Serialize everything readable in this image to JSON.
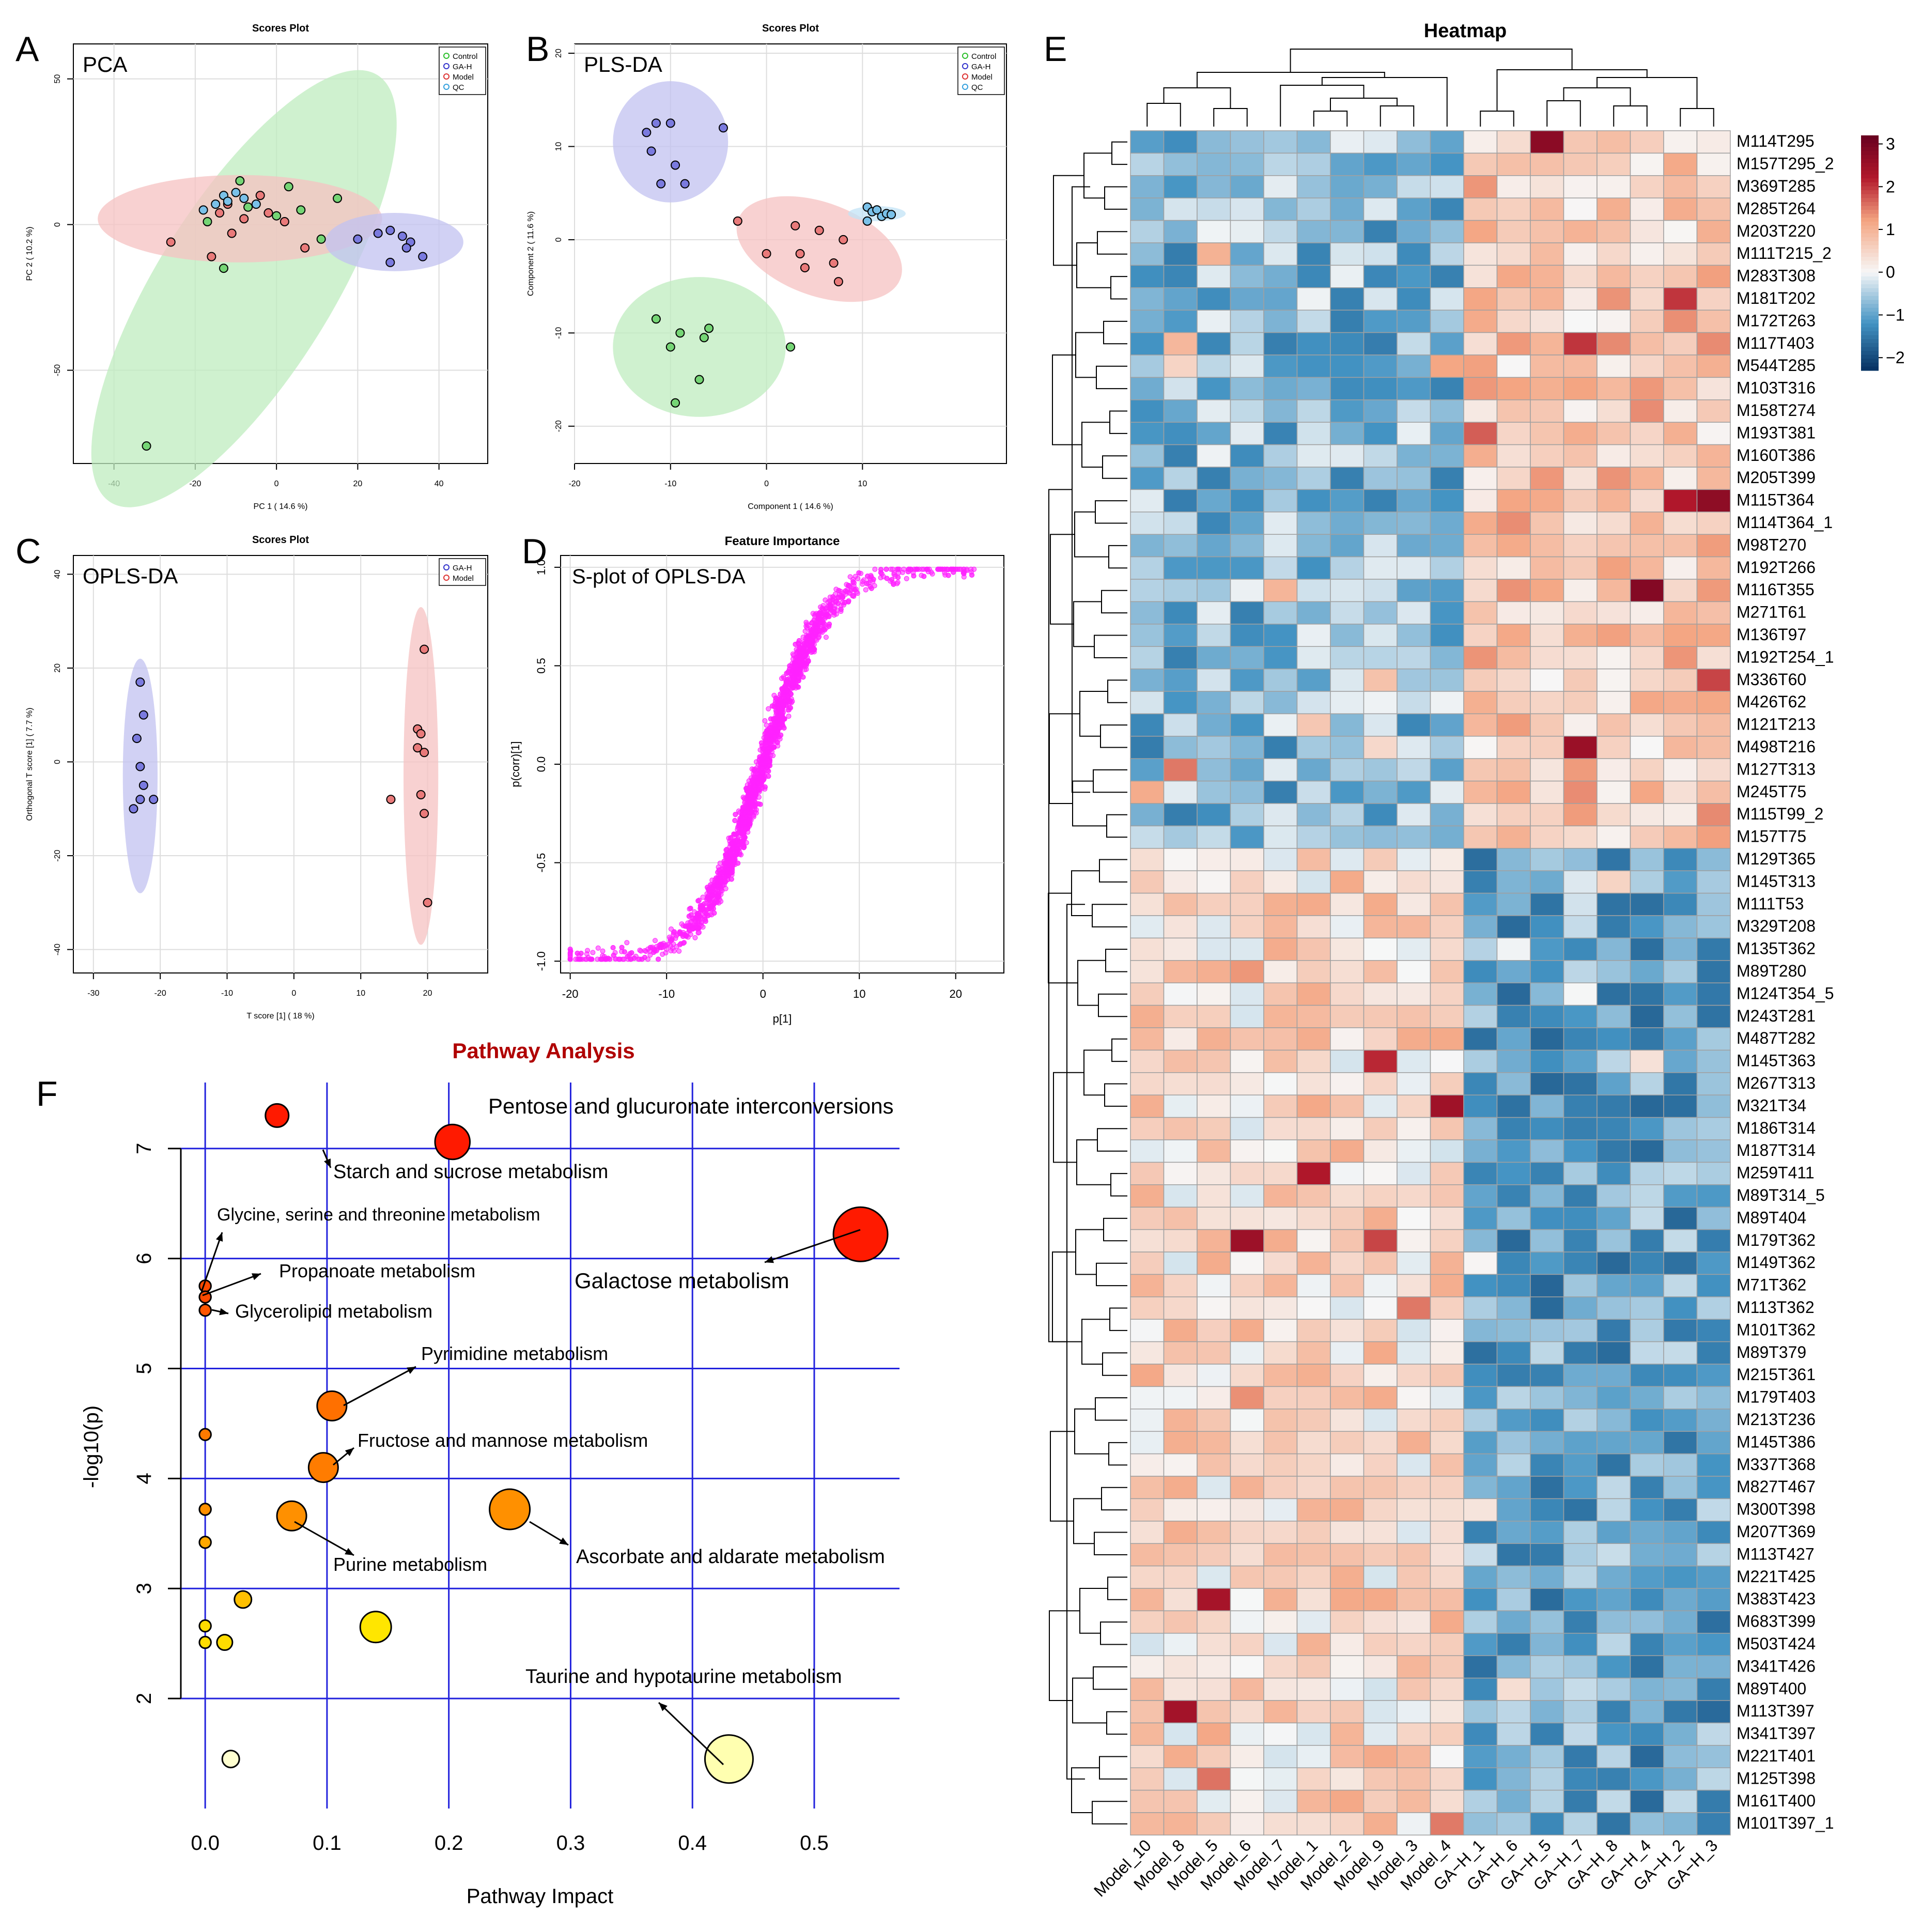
{
  "panel_letters": {
    "A": "A",
    "B": "B",
    "C": "C",
    "D": "D",
    "E": "E",
    "F": "F"
  },
  "colors": {
    "control": "#2bbf2b",
    "gah": "#3333cc",
    "model": "#dd3333",
    "qc": "#33a0dd",
    "splot": "#ff22ff",
    "path_grid": "#2222dd",
    "f_title": "#b00000",
    "hm_low": "#053061",
    "hm_mid": "#f7f7f7",
    "hm_high": "#67001f"
  },
  "chart_data": [
    {
      "id": "A",
      "type": "scatter",
      "title": "Scores Plot",
      "tag": "PCA",
      "xlabel": "PC 1 ( 14.6 %)",
      "ylabel": "PC 2 ( 10.2 %)",
      "xlim": [
        -50,
        52
      ],
      "ylim": [
        -82,
        62
      ],
      "xticks": [
        "-40",
        "-20",
        "0",
        "20",
        "40"
      ],
      "xtick_values": [
        -40,
        -20,
        0,
        20,
        40
      ],
      "yticks": [
        "-50",
        "0",
        "50"
      ],
      "ytick_values": [
        -50,
        0,
        50
      ],
      "legend": [
        "Control",
        "GA-H",
        "Model",
        "QC"
      ],
      "ellipses": [
        {
          "group": "control",
          "cx": -8,
          "cy": -22,
          "rx": 62,
          "ry": 30,
          "angle": 58
        },
        {
          "group": "model",
          "cx": -9,
          "cy": 2,
          "rx": 35,
          "ry": 15,
          "angle": 0
        },
        {
          "group": "gah",
          "cx": 29,
          "cy": -6,
          "rx": 17,
          "ry": 10,
          "angle": 0
        }
      ],
      "series": [
        {
          "name": "Control",
          "group": "control",
          "points": [
            [
              -32,
              -76
            ],
            [
              -13,
              -15
            ],
            [
              0,
              3
            ],
            [
              3,
              13
            ],
            [
              11,
              -5
            ],
            [
              15,
              9
            ],
            [
              -7,
              6
            ],
            [
              6,
              5
            ],
            [
              -9,
              15
            ],
            [
              -17,
              1
            ]
          ]
        },
        {
          "name": "GA-H",
          "group": "gah",
          "points": [
            [
              20,
              -5
            ],
            [
              25,
              -3
            ],
            [
              28,
              -2
            ],
            [
              31,
              -4
            ],
            [
              33,
              -6
            ],
            [
              36,
              -11
            ],
            [
              28,
              -13
            ],
            [
              32,
              -8
            ]
          ]
        },
        {
          "name": "Model",
          "group": "model",
          "points": [
            [
              -26,
              -6
            ],
            [
              -16,
              -11
            ],
            [
              -11,
              -3
            ],
            [
              -8,
              2
            ],
            [
              -4,
              10
            ],
            [
              -2,
              4
            ],
            [
              2,
              1
            ],
            [
              7,
              -8
            ],
            [
              -14,
              4
            ],
            [
              -12,
              7
            ]
          ]
        },
        {
          "name": "QC",
          "group": "qc",
          "points": [
            [
              -18,
              5
            ],
            [
              -15,
              7
            ],
            [
              -13,
              10
            ],
            [
              -12,
              8
            ],
            [
              -10,
              11
            ],
            [
              -8,
              9
            ],
            [
              -5,
              7
            ]
          ]
        }
      ]
    },
    {
      "id": "B",
      "type": "scatter",
      "title": "Scores Plot",
      "tag": "PLS-DA",
      "xlabel": "Component 1 ( 14.6 %)",
      "ylabel": "Component 2 ( 11.6 %)",
      "xlim": [
        -20,
        25
      ],
      "ylim": [
        -24,
        21
      ],
      "xticks": [
        "-20",
        "-10",
        "0",
        "10"
      ],
      "xtick_values": [
        -20,
        -10,
        0,
        10
      ],
      "yticks": [
        "-20",
        "-10",
        "0",
        "10",
        "20"
      ],
      "ytick_values": [
        -20,
        -10,
        0,
        10,
        20
      ],
      "legend": [
        "Control",
        "GA-H",
        "Model",
        "QC"
      ],
      "ellipses": [
        {
          "group": "gah",
          "cx": -10,
          "cy": 10.5,
          "rx": 6,
          "ry": 6.5,
          "angle": 0
        },
        {
          "group": "model",
          "cx": 5.5,
          "cy": -1,
          "rx": 9,
          "ry": 5,
          "angle": -20
        },
        {
          "group": "qc",
          "cx": 11.5,
          "cy": 2.8,
          "rx": 3,
          "ry": 0.8,
          "angle": 0
        },
        {
          "group": "control",
          "cx": -7,
          "cy": -11.5,
          "rx": 9,
          "ry": 7.5,
          "angle": 0
        }
      ],
      "series": [
        {
          "name": "Control",
          "group": "control",
          "points": [
            [
              -11.5,
              -8.5
            ],
            [
              -10,
              -11.5
            ],
            [
              -9,
              -10
            ],
            [
              -6.5,
              -10.5
            ],
            [
              -6,
              -9.5
            ],
            [
              -7,
              -15
            ],
            [
              -9.5,
              -17.5
            ],
            [
              2.5,
              -11.5
            ]
          ]
        },
        {
          "name": "GA-H",
          "group": "gah",
          "points": [
            [
              -12.5,
              11.5
            ],
            [
              -11.5,
              12.5
            ],
            [
              -10,
              12.5
            ],
            [
              -12,
              9.5
            ],
            [
              -9.5,
              8
            ],
            [
              -11,
              6
            ],
            [
              -8.5,
              6
            ],
            [
              -4.5,
              12
            ]
          ]
        },
        {
          "name": "Model",
          "group": "model",
          "points": [
            [
              -3,
              2
            ],
            [
              0,
              -1.5
            ],
            [
              3,
              1.5
            ],
            [
              3.5,
              -1.5
            ],
            [
              4,
              -3
            ],
            [
              5.5,
              1
            ],
            [
              7,
              -2.5
            ],
            [
              7.5,
              -4.5
            ],
            [
              8,
              0
            ]
          ]
        },
        {
          "name": "QC",
          "group": "qc",
          "points": [
            [
              10.5,
              3.5
            ],
            [
              11,
              3
            ],
            [
              11.5,
              3.2
            ],
            [
              10.5,
              2
            ],
            [
              12,
              2.5
            ],
            [
              12.5,
              2.8
            ],
            [
              13,
              2.7
            ]
          ]
        }
      ]
    },
    {
      "id": "C",
      "type": "scatter",
      "title": "Scores Plot",
      "tag": "OPLS-DA",
      "xlabel": "T score [1] ( 18 %)",
      "ylabel": "Orthogonal T score [1] ( 7.7 %)",
      "xlim": [
        -33,
        29
      ],
      "ylim": [
        -45,
        44
      ],
      "xticks": [
        "-30",
        "-20",
        "-10",
        "0",
        "10",
        "20"
      ],
      "xtick_values": [
        -30,
        -20,
        -10,
        0,
        10,
        20
      ],
      "yticks": [
        "-40",
        "-20",
        "0",
        "20",
        "40"
      ],
      "ytick_values": [
        -40,
        -20,
        0,
        20,
        40
      ],
      "legend": [
        "GA-H",
        "Model"
      ],
      "ellipses": [
        {
          "group": "gah",
          "cx": -23,
          "cy": -3,
          "rx": 2.6,
          "ry": 25,
          "angle": 0
        },
        {
          "group": "model",
          "cx": 19,
          "cy": -3,
          "rx": 2.6,
          "ry": 36,
          "angle": 0
        }
      ],
      "series": [
        {
          "name": "GA-H",
          "group": "gah",
          "points": [
            [
              -23,
              17
            ],
            [
              -22.5,
              10
            ],
            [
              -23.5,
              5
            ],
            [
              -23,
              -1
            ],
            [
              -22.5,
              -5
            ],
            [
              -23,
              -8
            ],
            [
              -21,
              -8
            ],
            [
              -24,
              -10
            ]
          ]
        },
        {
          "name": "Model",
          "group": "model",
          "points": [
            [
              19.5,
              24
            ],
            [
              18.5,
              7
            ],
            [
              19,
              6
            ],
            [
              18.5,
              3
            ],
            [
              19.5,
              2
            ],
            [
              19,
              -7
            ],
            [
              14.5,
              -8
            ],
            [
              19.5,
              -11
            ],
            [
              20,
              -30
            ]
          ]
        }
      ]
    },
    {
      "id": "D",
      "type": "scatter",
      "title": "Feature Importance",
      "tag": "S-plot of OPLS-DA",
      "xlabel": "p[1]",
      "ylabel": "p(corr)[1]",
      "xlim": [
        -21,
        25
      ],
      "ylim": [
        -1.06,
        1.06
      ],
      "xticks": [
        "-20",
        "-10",
        "0",
        "10",
        "20"
      ],
      "xtick_values": [
        -20,
        -10,
        0,
        10,
        20
      ],
      "yticks": [
        "-1.0",
        "-0.5",
        "0.0",
        "0.5",
        "1.0"
      ],
      "ytick_values": [
        -1,
        -0.5,
        0,
        0.5,
        1
      ],
      "n_points": 2400,
      "curve": "sigmoid-like: p(corr) ≈ tanh(p/6) with scatter"
    },
    {
      "id": "E",
      "type": "heatmap",
      "title": "Heatmap",
      "columns": [
        "Model_10",
        "Model_8",
        "Model_5",
        "Model_6",
        "Model_7",
        "Model_1",
        "Model_2",
        "Model_9",
        "Model_3",
        "Model_4",
        "GA−H_1",
        "GA−H_6",
        "GA−H_5",
        "GA−H_7",
        "GA−H_8",
        "GA−H_4",
        "GA−H_2",
        "GA−H_3"
      ],
      "rows": [
        "M114T295",
        "M157T295_2",
        "M369T285",
        "M285T264",
        "M203T220",
        "M111T215_2",
        "M283T308",
        "M181T202",
        "M172T263",
        "M117T403",
        "M544T285",
        "M103T316",
        "M158T274",
        "M193T381",
        "M160T386",
        "M205T399",
        "M115T364",
        "M114T364_1",
        "M98T270",
        "M192T266",
        "M116T355",
        "M271T61",
        "M136T97",
        "M192T254_1",
        "M336T60",
        "M426T62",
        "M121T213",
        "M498T216",
        "M127T313",
        "M245T75",
        "M115T99_2",
        "M157T75",
        "M129T365",
        "M145T313",
        "M111T53",
        "M329T208",
        "M135T362",
        "M89T280",
        "M124T354_5",
        "M243T281",
        "M487T282",
        "M145T363",
        "M267T313",
        "M321T34",
        "M186T314",
        "M187T314",
        "M259T411",
        "M89T314_5",
        "M89T404",
        "M179T362",
        "M149T362",
        "M71T362",
        "M113T362",
        "M101T362",
        "M89T379",
        "M215T361",
        "M179T403",
        "M213T236",
        "M145T386",
        "M337T368",
        "M827T467",
        "M300T398",
        "M207T369",
        "M113T427",
        "M221T425",
        "M383T423",
        "M683T399",
        "M503T424",
        "M341T426",
        "M89T400",
        "M113T397",
        "M341T397",
        "M221T401",
        "M125T398",
        "M161T400",
        "M101T397_1"
      ],
      "cluster_split_row": 32,
      "colorbar_ticks": [
        "3",
        "2",
        "1",
        "0",
        "−1",
        "−2"
      ],
      "colorbar_values": [
        3,
        2,
        1,
        0,
        -1,
        -2
      ],
      "zlim": [
        -2.3,
        3.2
      ],
      "note": "cell values approximated: rows 1-32 higher in GA-H, rows 33-76 higher in Model"
    },
    {
      "id": "F",
      "type": "bubble",
      "title": "Pathway Analysis",
      "xlabel": "Pathway Impact",
      "ylabel": "-log10(p)",
      "xlim": [
        -0.02,
        0.57
      ],
      "ylim": [
        1.0,
        7.6
      ],
      "xticks": [
        "0.0",
        "0.1",
        "0.2",
        "0.3",
        "0.4",
        "0.5"
      ],
      "xtick_values": [
        0,
        0.1,
        0.2,
        0.3,
        0.4,
        0.5
      ],
      "yticks": [
        "2",
        "3",
        "4",
        "5",
        "6",
        "7"
      ],
      "ytick_values": [
        2,
        3,
        4,
        5,
        6,
        7
      ],
      "points": [
        {
          "x": 0.059,
          "y": 7.3,
          "r": 0.3,
          "label": "Starch and sucrose metabolism",
          "color": "#ff1a00"
        },
        {
          "x": 0.203,
          "y": 7.06,
          "r": 0.45,
          "label": "Pentose and glucuronate interconversions",
          "color": "#ff1a00"
        },
        {
          "x": 0.538,
          "y": 6.22,
          "r": 0.7,
          "label": "Galactose metabolism",
          "color": "#ff1a00"
        },
        {
          "x": 0.0,
          "y": 5.75,
          "r": 0.15,
          "label": "Glycine, serine and threonine metabolism",
          "color": "#ff4a00"
        },
        {
          "x": 0.0,
          "y": 5.65,
          "r": 0.15,
          "label": "Propanoate metabolism",
          "color": "#ff4a00"
        },
        {
          "x": 0.0,
          "y": 5.53,
          "r": 0.15,
          "label": "Glycerolipid metabolism",
          "color": "#ff5500"
        },
        {
          "x": 0.104,
          "y": 4.66,
          "r": 0.38,
          "label": "Pyrimidine metabolism",
          "color": "#ff7000"
        },
        {
          "x": 0.0,
          "y": 4.4,
          "r": 0.15,
          "label": "",
          "color": "#ff7a00"
        },
        {
          "x": 0.097,
          "y": 4.1,
          "r": 0.38,
          "label": "Fructose and mannose metabolism",
          "color": "#ff7c00"
        },
        {
          "x": 0.0,
          "y": 3.72,
          "r": 0.15,
          "label": "",
          "color": "#ff9000"
        },
        {
          "x": 0.071,
          "y": 3.66,
          "r": 0.38,
          "label": "Purine metabolism",
          "color": "#ff9000"
        },
        {
          "x": 0.25,
          "y": 3.72,
          "r": 0.52,
          "label": "Ascorbate and aldarate metabolism",
          "color": "#ff9000"
        },
        {
          "x": 0.0,
          "y": 3.42,
          "r": 0.15,
          "label": "",
          "color": "#ffa800"
        },
        {
          "x": 0.031,
          "y": 2.9,
          "r": 0.22,
          "label": "",
          "color": "#ffc000"
        },
        {
          "x": 0.0,
          "y": 2.66,
          "r": 0.15,
          "label": "",
          "color": "#ffdc00"
        },
        {
          "x": 0.0,
          "y": 2.51,
          "r": 0.15,
          "label": "",
          "color": "#ffdc00"
        },
        {
          "x": 0.016,
          "y": 2.51,
          "r": 0.2,
          "label": "",
          "color": "#ffdc00"
        },
        {
          "x": 0.14,
          "y": 2.65,
          "r": 0.4,
          "label": "",
          "color": "#ffe600"
        },
        {
          "x": 0.021,
          "y": 1.45,
          "r": 0.22,
          "label": "",
          "color": "#ffffd0"
        },
        {
          "x": 0.43,
          "y": 1.45,
          "r": 0.62,
          "label": "Taurine and hypotaurine metabolism",
          "color": "#ffffb0"
        }
      ]
    }
  ]
}
